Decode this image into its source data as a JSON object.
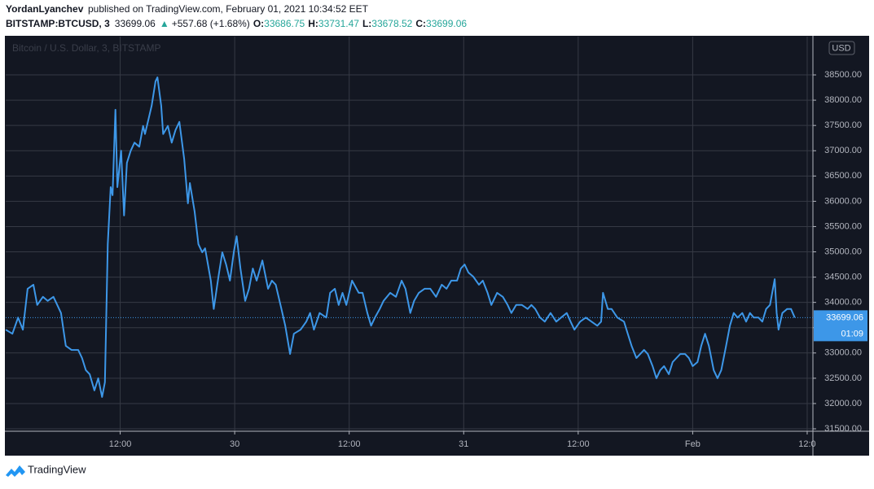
{
  "header": {
    "author": "YordanLyanchev",
    "published": "published on TradingView.com, February 01, 2021 10:34:52 EET"
  },
  "chart_data": {
    "type": "line",
    "symbol": "BITSTAMP:BTCUSD, 3",
    "price": "33699.06",
    "arrow": "▲",
    "change": "+557.68 (+1.68%)",
    "ohlc": [
      {
        "key": "O:",
        "value": "33686.75"
      },
      {
        "key": "H:",
        "value": "33731.47"
      },
      {
        "key": "L:",
        "value": "33678.52"
      },
      {
        "key": "C:",
        "value": "33699.06"
      }
    ],
    "watermark": "Bitcoin / U.S. Dollar, 3, BITSTAMP",
    "currency": "USD",
    "last_price": 33699.06,
    "last_price_label": "33699.06",
    "countdown": "01:09",
    "color": "#3d97e8",
    "x": [
      0.0,
      0.7,
      1.3,
      1.8,
      2.3,
      2.9,
      3.3,
      3.9,
      4.4,
      5.0,
      5.4,
      5.8,
      6.3,
      6.9,
      7.6,
      8.0,
      8.4,
      8.8,
      9.3,
      9.7,
      10.1,
      10.4,
      10.7,
      11.0,
      11.2,
      11.5,
      11.7,
      12.1,
      12.4,
      12.7,
      13.1,
      13.5,
      14.0,
      14.4,
      14.6,
      15.0,
      15.3,
      15.7,
      15.9,
      16.3,
      16.5,
      17.0,
      17.4,
      17.8,
      18.2,
      18.7,
      19.1,
      19.3,
      19.8,
      20.2,
      20.6,
      20.9,
      21.5,
      21.8,
      22.3,
      22.7,
      23.1,
      23.5,
      23.9,
      24.2,
      24.6,
      25.1,
      25.5,
      25.9,
      26.3,
      26.9,
      27.5,
      27.9,
      28.3,
      28.9,
      29.3,
      29.8,
      30.2,
      30.9,
      31.5,
      31.9,
      32.3,
      32.9,
      33.6,
      34.0,
      34.5,
      34.9,
      35.3,
      35.7,
      36.3,
      37.0,
      37.4,
      37.9,
      38.3,
      38.7,
      39.2,
      39.6,
      40.3,
      40.9,
      41.5,
      41.9,
      42.4,
      42.8,
      43.3,
      43.9,
      44.5,
      45.1,
      45.7,
      46.2,
      46.7,
      47.3,
      47.7,
      48.1,
      48.5,
      49.0,
      49.6,
      50.0,
      50.5,
      50.9,
      51.5,
      52.1,
      52.6,
      53.0,
      53.5,
      54.1,
      54.7,
      55.1,
      55.5,
      56.0,
      56.5,
      57.1,
      57.7,
      58.2,
      58.8,
      59.2,
      59.6,
      60.2,
      60.8,
      61.4,
      62.0,
      62.4,
      62.6,
      63.1,
      63.5,
      64.1,
      64.8,
      65.2,
      65.6,
      66.1,
      66.5,
      66.9,
      67.3,
      67.8,
      68.2,
      68.6,
      69.0,
      69.5,
      69.9,
      70.3,
      70.7,
      71.2,
      71.6,
      72.0,
      72.5,
      72.9,
      73.3,
      73.7,
      74.2,
      74.6,
      75.0,
      75.5,
      75.9,
      76.3,
      76.7,
      77.2,
      77.6,
      78.0,
      78.4,
      78.9,
      79.3,
      79.7,
      80.1,
      80.6,
      80.8,
      81.0,
      81.4,
      81.9,
      82.3,
      82.7
    ],
    "values": [
      33460,
      33380,
      33700,
      33460,
      34270,
      34350,
      33950,
      34110,
      34030,
      34110,
      33950,
      33790,
      33140,
      33060,
      33060,
      32900,
      32660,
      32580,
      32260,
      32500,
      32130,
      32420,
      35150,
      36280,
      36120,
      37810,
      36280,
      37000,
      35720,
      36760,
      37000,
      37160,
      37080,
      37490,
      37330,
      37650,
      37890,
      38370,
      38450,
      37890,
      37330,
      37490,
      37160,
      37410,
      37570,
      36840,
      35960,
      36360,
      35800,
      35150,
      34990,
      35070,
      34430,
      33870,
      34510,
      34990,
      34750,
      34430,
      34990,
      35310,
      34670,
      34030,
      34270,
      34670,
      34430,
      34830,
      34270,
      34430,
      34350,
      33870,
      33540,
      32980,
      33380,
      33460,
      33620,
      33790,
      33460,
      33790,
      33700,
      34190,
      34270,
      33950,
      34190,
      33950,
      34430,
      34190,
      34190,
      33790,
      33540,
      33700,
      33870,
      34030,
      34190,
      34110,
      34430,
      34270,
      33790,
      34030,
      34190,
      34270,
      34270,
      34110,
      34350,
      34270,
      34430,
      34430,
      34670,
      34750,
      34590,
      34510,
      34350,
      34430,
      34190,
      33950,
      34190,
      34110,
      33950,
      33790,
      33950,
      33950,
      33870,
      33950,
      33870,
      33700,
      33620,
      33790,
      33620,
      33700,
      33790,
      33620,
      33460,
      33620,
      33700,
      33620,
      33540,
      33620,
      34190,
      33870,
      33870,
      33700,
      33620,
      33380,
      33140,
      32900,
      32980,
      33060,
      32980,
      32740,
      32500,
      32660,
      32740,
      32580,
      32820,
      32900,
      32980,
      32980,
      32900,
      32740,
      32820,
      33140,
      33380,
      33140,
      32660,
      32500,
      32660,
      33140,
      33540,
      33790,
      33700,
      33790,
      33620,
      33790,
      33700,
      33700,
      33620,
      33870,
      33950,
      34460,
      33790,
      33460,
      33790,
      33870,
      33870,
      33700
    ],
    "xlim": [
      0,
      84.6
    ],
    "xticks": [
      {
        "value": 12,
        "label": "12:00"
      },
      {
        "value": 24,
        "label": "30"
      },
      {
        "value": 36,
        "label": "12:00"
      },
      {
        "value": 48,
        "label": "31"
      },
      {
        "value": 60,
        "label": "12:00"
      },
      {
        "value": 72,
        "label": "Feb"
      },
      {
        "value": 84,
        "label": "12:0"
      }
    ],
    "ylim": [
      31452,
      39257
    ],
    "yticks": [
      {
        "value": 31500,
        "label": "31500.00"
      },
      {
        "value": 32000,
        "label": "32000.00"
      },
      {
        "value": 32500,
        "label": "32500.00"
      },
      {
        "value": 33000,
        "label": "33000.00"
      },
      {
        "value": 33500,
        "label": "33500.00"
      },
      {
        "value": 34000,
        "label": "34000.00"
      },
      {
        "value": 34500,
        "label": "34500.00"
      },
      {
        "value": 35000,
        "label": "35000.00"
      },
      {
        "value": 35500,
        "label": "35500.00"
      },
      {
        "value": 36000,
        "label": "36000.00"
      },
      {
        "value": 36500,
        "label": "36500.00"
      },
      {
        "value": 37000,
        "label": "37000.00"
      },
      {
        "value": 37500,
        "label": "37500.00"
      },
      {
        "value": 38000,
        "label": "38000.00"
      },
      {
        "value": 38500,
        "label": "38500.00"
      }
    ],
    "grid": true
  },
  "footer": {
    "brand": "TradingView"
  }
}
